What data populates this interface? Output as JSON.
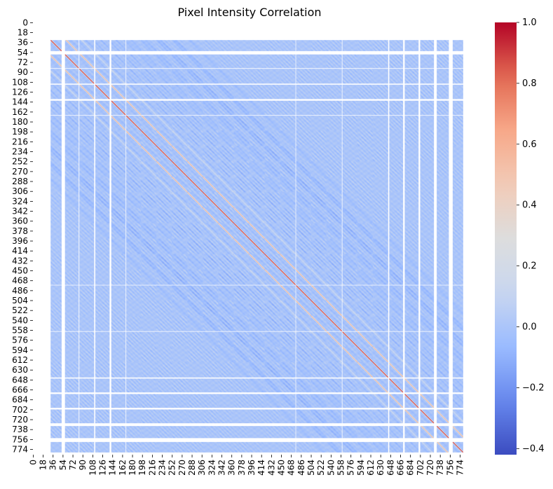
{
  "chart_data": {
    "type": "heatmap",
    "title": "Pixel Intensity Correlation",
    "xlabel": "",
    "ylabel": "",
    "matrix_size": 784,
    "x_tick_labels": [
      "0",
      "18",
      "36",
      "54",
      "72",
      "90",
      "108",
      "126",
      "144",
      "162",
      "180",
      "198",
      "216",
      "234",
      "252",
      "270",
      "288",
      "306",
      "324",
      "342",
      "360",
      "378",
      "396",
      "414",
      "432",
      "450",
      "468",
      "486",
      "504",
      "522",
      "540",
      "558",
      "576",
      "594",
      "612",
      "630",
      "648",
      "666",
      "684",
      "702",
      "720",
      "738",
      "756",
      "774"
    ],
    "y_tick_labels": [
      "0",
      "18",
      "36",
      "54",
      "72",
      "90",
      "108",
      "126",
      "144",
      "162",
      "180",
      "198",
      "216",
      "234",
      "252",
      "270",
      "288",
      "306",
      "324",
      "342",
      "360",
      "378",
      "396",
      "414",
      "432",
      "450",
      "468",
      "486",
      "504",
      "522",
      "540",
      "558",
      "576",
      "594",
      "612",
      "630",
      "648",
      "666",
      "684",
      "702",
      "720",
      "738",
      "756",
      "774"
    ],
    "tick_step": 18,
    "diagonal_value": 1.0,
    "background_value": 0.0,
    "value_range": [
      -0.42,
      1.0
    ],
    "undefined_pixel_indices": [
      0,
      1,
      2,
      3,
      4,
      5,
      6,
      7,
      8,
      9,
      10,
      11,
      12,
      13,
      14,
      15,
      16,
      17,
      18,
      19,
      20,
      21,
      22,
      23,
      24,
      25,
      26,
      27,
      28,
      29,
      30,
      31,
      52,
      53,
      54,
      55,
      56,
      57,
      83,
      111,
      112,
      139,
      140,
      141,
      168,
      476,
      560,
      644,
      645,
      671,
      672,
      673,
      699,
      700,
      701,
      727,
      728,
      729,
      730,
      731,
      754,
      755,
      756,
      757,
      758,
      759,
      760,
      780,
      781,
      782,
      783
    ],
    "colorbar": {
      "label": "",
      "min": -0.42,
      "max": 1.0,
      "ticks": [
        "1.0",
        "0.8",
        "0.6",
        "0.4",
        "0.2",
        "0.0",
        "−0.2",
        "−0.4"
      ],
      "tick_values": [
        1.0,
        0.8,
        0.6,
        0.4,
        0.2,
        0.0,
        -0.2,
        -0.4
      ]
    },
    "colormap": "coolwarm",
    "colormap_stops": [
      "#3b4cc0",
      "#6788ee",
      "#9abbff",
      "#c9d7f0",
      "#dddddd",
      "#f2cbb7",
      "#f7a889",
      "#e26952",
      "#b40426"
    ],
    "grid": false,
    "legend": "none"
  }
}
